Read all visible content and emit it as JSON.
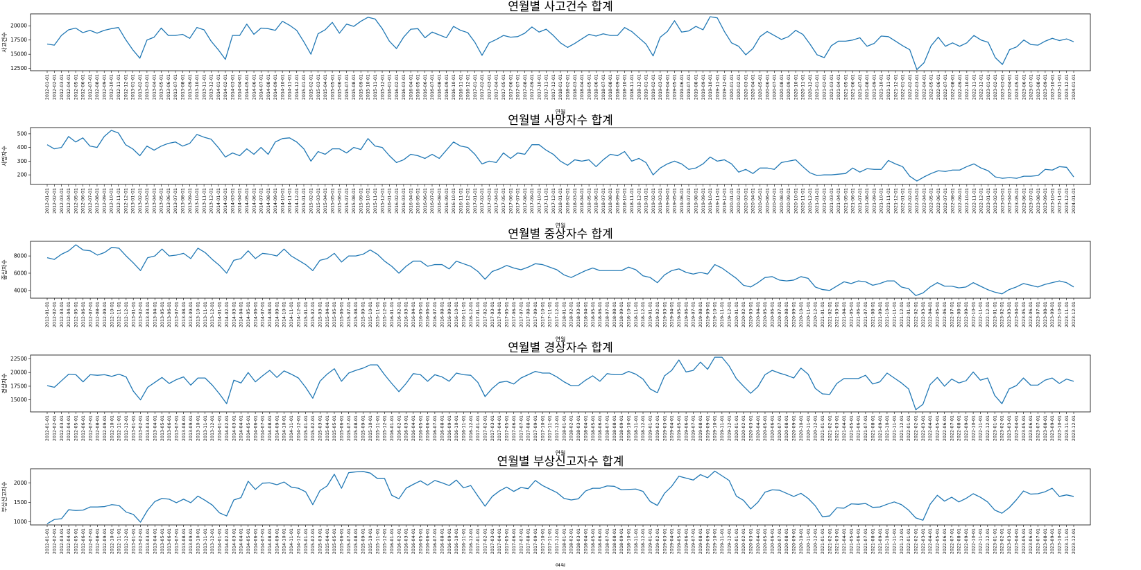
{
  "chart_data": [
    {
      "type": "line",
      "title": "연월별 사고건수 합계",
      "xlabel": "연월",
      "ylabel": "사고건수",
      "yticks": [
        12500,
        15000,
        17500,
        20000
      ],
      "ylim": [
        12100,
        22100
      ],
      "color": "#1f77b4",
      "grid": false,
      "values": [
        16800,
        16600,
        18300,
        19300,
        19600,
        18800,
        19200,
        18700,
        19200,
        19500,
        19700,
        17600,
        15800,
        14300,
        17500,
        18000,
        19600,
        18300,
        18300,
        18500,
        17800,
        19700,
        19300,
        17300,
        15800,
        14100,
        18300,
        18300,
        20300,
        18500,
        19600,
        19500,
        19200,
        20800,
        20100,
        19200,
        17200,
        15000,
        18600,
        19300,
        20600,
        18700,
        20300,
        19900,
        20800,
        21500,
        21200,
        19500,
        17300,
        16000,
        18000,
        19400,
        19500,
        17900,
        18900,
        18400,
        17900,
        19900,
        19200,
        18800,
        17100,
        14800,
        17000,
        17600,
        18300,
        18000,
        18100,
        18700,
        19800,
        18900,
        19400,
        18300,
        17000,
        16200,
        16900,
        17700,
        18500,
        18200,
        18600,
        18300,
        18300,
        19700,
        19000,
        17900,
        16800,
        14700,
        18000,
        19000,
        20900,
        18900,
        19100,
        19900,
        19300,
        21600,
        21400,
        19000,
        17000,
        16400,
        14900,
        16000,
        18100,
        19000,
        18300,
        17600,
        18100,
        19200,
        18500,
        16800,
        14900,
        14400,
        16500,
        17300,
        17300,
        17500,
        17900,
        16400,
        16900,
        18200,
        18100,
        17300,
        16500,
        15800,
        12300,
        13500,
        16500,
        18000,
        16400,
        17000,
        16400,
        17000,
        18300,
        17500,
        17100,
        14400,
        13200,
        15800,
        16300,
        17500,
        16700,
        16600,
        17300,
        17800,
        17400,
        17700,
        17200
      ]
    },
    {
      "type": "line",
      "title": "연월별 사망자수 합계",
      "xlabel": "연월",
      "ylabel": "사망자수",
      "yticks": [
        200,
        300,
        400,
        500
      ],
      "ylim": [
        130,
        545
      ],
      "color": "#1f77b4",
      "grid": false,
      "values": [
        420,
        390,
        400,
        480,
        440,
        470,
        410,
        400,
        480,
        525,
        505,
        420,
        390,
        340,
        410,
        380,
        410,
        430,
        440,
        410,
        430,
        495,
        475,
        460,
        400,
        330,
        360,
        340,
        390,
        350,
        400,
        350,
        440,
        465,
        470,
        440,
        390,
        300,
        370,
        350,
        390,
        390,
        360,
        400,
        385,
        465,
        410,
        400,
        340,
        290,
        310,
        350,
        340,
        320,
        350,
        320,
        380,
        440,
        410,
        400,
        350,
        280,
        300,
        290,
        360,
        320,
        360,
        350,
        420,
        420,
        380,
        350,
        300,
        270,
        310,
        300,
        310,
        260,
        310,
        350,
        340,
        370,
        300,
        320,
        290,
        200,
        250,
        280,
        300,
        280,
        240,
        250,
        280,
        330,
        300,
        310,
        280,
        220,
        240,
        210,
        250,
        250,
        240,
        290,
        300,
        310,
        260,
        215,
        195,
        200,
        200,
        205,
        210,
        250,
        220,
        245,
        240,
        240,
        305,
        280,
        260,
        190,
        155,
        185,
        210,
        230,
        225,
        235,
        235,
        260,
        280,
        250,
        230,
        185,
        175,
        180,
        175,
        190,
        190,
        195,
        240,
        235,
        260,
        255,
        185
      ]
    },
    {
      "type": "line",
      "title": "연월별 중상자수 합계",
      "xlabel": "연월",
      "ylabel": "중상자수",
      "yticks": [
        4000,
        6000,
        8000
      ],
      "ylim": [
        3100,
        9700
      ],
      "color": "#1f77b4",
      "grid": false,
      "values": [
        7800,
        7600,
        8200,
        8600,
        9300,
        8700,
        8600,
        8100,
        8400,
        9000,
        8900,
        8000,
        7200,
        6300,
        7800,
        8000,
        8800,
        8000,
        8100,
        8300,
        7700,
        8900,
        8400,
        7600,
        6900,
        6000,
        7500,
        7700,
        8600,
        7700,
        8300,
        8200,
        8000,
        8800,
        8000,
        7500,
        7000,
        6300,
        7500,
        7700,
        8300,
        7300,
        8000,
        8000,
        8200,
        8700,
        8200,
        7400,
        6800,
        6000,
        6800,
        7400,
        7400,
        6800,
        7000,
        7000,
        6500,
        7400,
        7100,
        6800,
        6200,
        5300,
        6200,
        6500,
        6900,
        6600,
        6400,
        6700,
        7100,
        7000,
        6700,
        6400,
        5800,
        5500,
        5900,
        6300,
        6600,
        6300,
        6300,
        6300,
        6300,
        6700,
        6400,
        5700,
        5500,
        4900,
        5800,
        6300,
        6500,
        6100,
        5900,
        6100,
        5900,
        7000,
        6600,
        6000,
        5400,
        4600,
        4400,
        4900,
        5500,
        5600,
        5200,
        5100,
        5200,
        5600,
        5400,
        4400,
        4100,
        4000,
        4500,
        5000,
        4800,
        5100,
        5000,
        4600,
        4800,
        5100,
        5100,
        4400,
        4200,
        3400,
        3700,
        4400,
        4900,
        4500,
        4500,
        4300,
        4400,
        4900,
        4500,
        4100,
        3800,
        3600,
        4100,
        4400,
        4800,
        4600,
        4400,
        4700,
        4900,
        5100,
        4900,
        4400
      ]
    },
    {
      "type": "line",
      "title": "연월별 경상자수 합계",
      "xlabel": "연월",
      "ylabel": "경상자수",
      "yticks": [
        15000,
        17500,
        20000,
        22500
      ],
      "ylim": [
        12800,
        23200
      ],
      "color": "#1f77b4",
      "grid": false,
      "values": [
        17600,
        17300,
        18500,
        19700,
        19600,
        18300,
        19600,
        19500,
        19600,
        19300,
        19700,
        19200,
        16600,
        15000,
        17300,
        18200,
        19100,
        18000,
        18700,
        19200,
        17700,
        19000,
        19000,
        17700,
        16100,
        14300,
        18600,
        18100,
        20000,
        18300,
        19400,
        20400,
        19100,
        20300,
        19700,
        19000,
        17300,
        15300,
        18400,
        19700,
        20700,
        18400,
        19900,
        20400,
        20800,
        21400,
        21400,
        19600,
        18000,
        16500,
        18000,
        19800,
        19600,
        18400,
        19600,
        19200,
        18400,
        19900,
        19600,
        19500,
        18200,
        15600,
        17100,
        18200,
        18400,
        17900,
        19000,
        19600,
        20200,
        19900,
        19900,
        19200,
        18300,
        17600,
        17600,
        18600,
        19400,
        18400,
        19800,
        19600,
        19600,
        20200,
        19700,
        18800,
        17000,
        16300,
        19400,
        20400,
        22300,
        20100,
        20400,
        21900,
        20600,
        22800,
        22800,
        21200,
        18900,
        17500,
        16200,
        17400,
        19600,
        20400,
        19900,
        19500,
        19000,
        20800,
        19700,
        17100,
        16100,
        16000,
        18000,
        18900,
        18900,
        18900,
        19500,
        17900,
        18300,
        19900,
        19000,
        18100,
        17000,
        13200,
        14200,
        17800,
        19100,
        17500,
        18800,
        18100,
        18500,
        20100,
        18600,
        19000,
        15800,
        14300,
        17000,
        17600,
        19000,
        17700,
        17700,
        18600,
        19000,
        18000,
        18800,
        18400
      ]
    },
    {
      "type": "line",
      "title": "연월별 부상신고자수 합계",
      "xlabel": "연월",
      "ylabel": "부상신고자수",
      "yticks": [
        1000,
        1500,
        2000
      ],
      "ylim": [
        920,
        2360
      ],
      "color": "#1f77b4",
      "grid": false,
      "values": [
        950,
        1060,
        1080,
        1310,
        1290,
        1300,
        1380,
        1380,
        1390,
        1440,
        1420,
        1250,
        1190,
        990,
        1300,
        1520,
        1600,
        1580,
        1490,
        1580,
        1490,
        1660,
        1550,
        1430,
        1230,
        1150,
        1560,
        1620,
        2040,
        1830,
        1990,
        2000,
        1950,
        2020,
        1890,
        1860,
        1770,
        1440,
        1800,
        1920,
        2220,
        1860,
        2260,
        2280,
        2290,
        2250,
        2110,
        2110,
        1680,
        1590,
        1860,
        1960,
        2050,
        1940,
        2060,
        2000,
        1930,
        2070,
        1870,
        1930,
        1660,
        1400,
        1650,
        1790,
        1890,
        1780,
        1880,
        1850,
        2060,
        1930,
        1840,
        1750,
        1600,
        1560,
        1590,
        1790,
        1860,
        1860,
        1920,
        1910,
        1820,
        1830,
        1840,
        1780,
        1520,
        1420,
        1730,
        1910,
        2170,
        2120,
        2070,
        2210,
        2130,
        2300,
        2180,
        2060,
        1660,
        1550,
        1330,
        1500,
        1760,
        1820,
        1810,
        1730,
        1650,
        1730,
        1600,
        1410,
        1130,
        1150,
        1360,
        1350,
        1460,
        1450,
        1470,
        1370,
        1380,
        1450,
        1510,
        1440,
        1300,
        1100,
        1040,
        1450,
        1680,
        1530,
        1630,
        1510,
        1600,
        1720,
        1630,
        1510,
        1300,
        1220,
        1360,
        1560,
        1790,
        1710,
        1720,
        1770,
        1860,
        1650,
        1690,
        1650
      ]
    }
  ]
}
